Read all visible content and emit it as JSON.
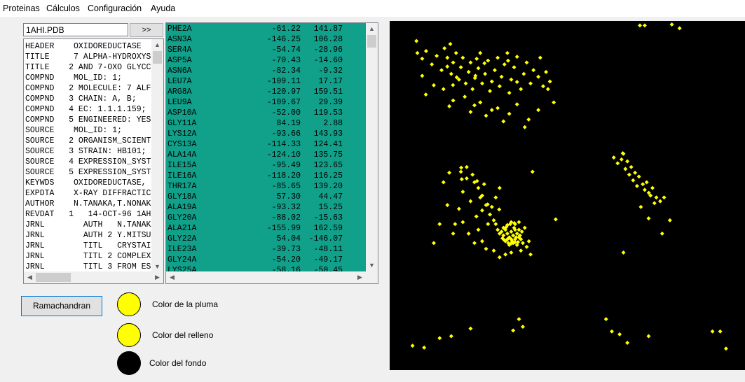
{
  "menu": [
    "Proteinas",
    "Cálculos",
    "Configuración",
    "Ayuda"
  ],
  "file": {
    "name": "1AHI.PDB",
    "go_label": ">>"
  },
  "header_lines": [
    "HEADER    OXIDOREDUCTASE",
    "TITLE     7 ALPHA-HYDROXYS",
    "TITLE    2 AND 7-OXO GLYCC",
    "COMPND    MOL_ID: 1;",
    "COMPND   2 MOLECULE: 7 ALF",
    "COMPND   3 CHAIN: A, B;",
    "COMPND   4 EC: 1.1.1.159;",
    "COMPND   5 ENGINEERED: YES",
    "SOURCE    MOL_ID: 1;",
    "SOURCE   2 ORGANISM_SCIENT",
    "SOURCE   3 STRAIN: HB101;",
    "SOURCE   4 EXPRESSION_SYST",
    "SOURCE   5 EXPRESSION_SYST",
    "KEYWDS    OXIDOREDUCTASE,",
    "EXPDTA    X-RAY DIFFRACTIC",
    "AUTHOR    N.TANAKA,T.NONAK",
    "REVDAT   1   14-OCT-96 1AH",
    "JRNL        AUTH   N.TANAK",
    "JRNL        AUTH 2 Y.MITSU",
    "JRNL        TITL   CRYSTAI",
    "JRNL        TITL 2 COMPLEX",
    "JRNL        TITL 3 FROM ES"
  ],
  "angles": [
    {
      "res": "PHE2A",
      "phi": "-61.22",
      "psi": "141.87"
    },
    {
      "res": "ASN3A",
      "phi": "-146.25",
      "psi": "106.28"
    },
    {
      "res": "SER4A",
      "phi": "-54.74",
      "psi": "-28.96"
    },
    {
      "res": "ASP5A",
      "phi": "-70.43",
      "psi": "-14.60"
    },
    {
      "res": "ASN6A",
      "phi": "-82.34",
      "psi": "-9.32"
    },
    {
      "res": "LEU7A",
      "phi": "-109.11",
      "psi": "17.17"
    },
    {
      "res": "ARG8A",
      "phi": "-120.97",
      "psi": "159.51"
    },
    {
      "res": "LEU9A",
      "phi": "-109.67",
      "psi": "29.39"
    },
    {
      "res": "ASP10A",
      "phi": "-52.00",
      "psi": "119.53"
    },
    {
      "res": "GLY11A",
      "phi": "84.19",
      "psi": "2.88"
    },
    {
      "res": "LYS12A",
      "phi": "-93.66",
      "psi": "143.93"
    },
    {
      "res": "CYS13A",
      "phi": "-114.33",
      "psi": "124.41"
    },
    {
      "res": "ALA14A",
      "phi": "-124.10",
      "psi": "135.75"
    },
    {
      "res": "ILE15A",
      "phi": "-95.49",
      "psi": "123.65"
    },
    {
      "res": "ILE16A",
      "phi": "-118.20",
      "psi": "116.25"
    },
    {
      "res": "THR17A",
      "phi": "-85.65",
      "psi": "139.20"
    },
    {
      "res": "GLY18A",
      "phi": "57.30",
      "psi": "44.47"
    },
    {
      "res": "ALA19A",
      "phi": "-93.32",
      "psi": "15.25"
    },
    {
      "res": "GLY20A",
      "phi": "-88.02",
      "psi": "-15.63"
    },
    {
      "res": "ALA21A",
      "phi": "-155.99",
      "psi": "162.59"
    },
    {
      "res": "GLY22A",
      "phi": "54.04",
      "psi": "-146.07"
    },
    {
      "res": "ILE23A",
      "phi": "-39.73",
      "psi": "-48.11"
    },
    {
      "res": "GLY24A",
      "phi": "-54.20",
      "psi": "-49.17"
    },
    {
      "res": "LYS25A",
      "phi": "-58.16",
      "psi": "-50.45"
    }
  ],
  "buttons": {
    "ramachandran": "Ramachandran"
  },
  "colors": {
    "pen": {
      "label": "Color de la pluma",
      "value": "#ffff00"
    },
    "fill": {
      "label": "Color del relleno",
      "value": "#ffff00"
    },
    "background": {
      "label": "Color del fondo",
      "value": "#000000"
    }
  },
  "chart_data": {
    "type": "scatter",
    "xlim": [
      -180,
      180
    ],
    "ylim": [
      -180,
      180
    ],
    "grid": false,
    "point_color": "#ffff00",
    "background": "#000000",
    "points": [
      [
        -61.22,
        141.87
      ],
      [
        -146.25,
        106.28
      ],
      [
        -54.74,
        -28.96
      ],
      [
        -70.43,
        -14.6
      ],
      [
        -82.34,
        -9.32
      ],
      [
        -109.11,
        17.17
      ],
      [
        -120.97,
        159.51
      ],
      [
        -109.67,
        29.39
      ],
      [
        -52.0,
        119.53
      ],
      [
        84.19,
        2.88
      ],
      [
        -93.66,
        143.93
      ],
      [
        -114.33,
        124.41
      ],
      [
        -124.1,
        135.75
      ],
      [
        -95.49,
        123.65
      ],
      [
        -118.2,
        116.25
      ],
      [
        -85.65,
        139.2
      ],
      [
        57.3,
        44.47
      ],
      [
        -93.32,
        15.25
      ],
      [
        -88.02,
        -15.63
      ],
      [
        -155.99,
        162.59
      ],
      [
        54.04,
        -146.07
      ],
      [
        -39.73,
        -48.11
      ],
      [
        -54.2,
        -49.17
      ],
      [
        -58.16,
        -50.45
      ],
      [
        -155,
        150
      ],
      [
        -150,
        144
      ],
      [
        -146,
        152
      ],
      [
        -140,
        138
      ],
      [
        -135,
        147
      ],
      [
        -130,
        132
      ],
      [
        -127,
        155
      ],
      [
        -124,
        145
      ],
      [
        -120,
        128
      ],
      [
        -118,
        140
      ],
      [
        -115,
        150
      ],
      [
        -112,
        122
      ],
      [
        -110,
        135
      ],
      [
        -108,
        145
      ],
      [
        -105,
        118
      ],
      [
        -102,
        130
      ],
      [
        -100,
        140
      ],
      [
        -98,
        112
      ],
      [
        -95,
        126
      ],
      [
        -92,
        134
      ],
      [
        -90,
        150
      ],
      [
        -88,
        118
      ],
      [
        -85,
        128
      ],
      [
        -82,
        142
      ],
      [
        -80,
        110
      ],
      [
        -78,
        120
      ],
      [
        -75,
        132
      ],
      [
        -72,
        145
      ],
      [
        -70,
        115
      ],
      [
        -68,
        125
      ],
      [
        -65,
        138
      ],
      [
        -62,
        150
      ],
      [
        -60,
        108
      ],
      [
        -58,
        122
      ],
      [
        -55,
        135
      ],
      [
        -52,
        146
      ],
      [
        -48,
        112
      ],
      [
        -45,
        128
      ],
      [
        -42,
        140
      ],
      [
        -38,
        118
      ],
      [
        -35,
        132
      ],
      [
        -30,
        125
      ],
      [
        -28,
        145
      ],
      [
        -25,
        115
      ],
      [
        -22,
        130
      ],
      [
        -18,
        120
      ],
      [
        -150,
        126
      ],
      [
        -138,
        116
      ],
      [
        -128,
        112
      ],
      [
        -118,
        100
      ],
      [
        -106,
        104
      ],
      [
        -96,
        95
      ],
      [
        -90,
        98
      ],
      [
        -84,
        84
      ],
      [
        -78,
        90
      ],
      [
        -72,
        92
      ],
      [
        -66,
        78
      ],
      [
        -60,
        86
      ],
      [
        -52,
        96
      ],
      [
        -44,
        72
      ],
      [
        -40,
        80
      ],
      [
        -30,
        90
      ],
      [
        -20,
        112
      ],
      [
        -14,
        98
      ],
      [
        -122,
        94
      ],
      [
        -100,
        88
      ],
      [
        -68,
        -38
      ],
      [
        -66,
        -42
      ],
      [
        -64,
        -36
      ],
      [
        -62,
        -40
      ],
      [
        -60,
        -44
      ],
      [
        -58,
        -38
      ],
      [
        -56,
        -42
      ],
      [
        -54,
        -46
      ],
      [
        -52,
        -40
      ],
      [
        -50,
        -36
      ],
      [
        -65,
        -47
      ],
      [
        -63,
        -33
      ],
      [
        -61,
        -50
      ],
      [
        -59,
        -30
      ],
      [
        -57,
        -48
      ],
      [
        -55,
        -34
      ],
      [
        -53,
        -44
      ],
      [
        -51,
        -49
      ],
      [
        -49,
        -42
      ],
      [
        -47,
        -38
      ],
      [
        -67,
        -45
      ],
      [
        -64,
        -48
      ],
      [
        -62,
        -31
      ],
      [
        -60,
        -52
      ],
      [
        -58,
        -28
      ],
      [
        -56,
        -50
      ],
      [
        -54,
        -30
      ],
      [
        -52,
        -52
      ],
      [
        -50,
        -28
      ],
      [
        -48,
        -46
      ],
      [
        -66,
        -34
      ],
      [
        -62,
        -46
      ],
      [
        -58,
        -46
      ],
      [
        -54,
        -36
      ],
      [
        -50,
        -44
      ],
      [
        -70,
        -40
      ],
      [
        -72,
        -36
      ],
      [
        -46,
        -50
      ],
      [
        -44,
        -34
      ],
      [
        -74,
        -30
      ],
      [
        -80,
        -20
      ],
      [
        -76,
        -26
      ],
      [
        -84,
        -10
      ],
      [
        -88,
        0
      ],
      [
        -92,
        8
      ],
      [
        -96,
        14
      ],
      [
        -100,
        -6
      ],
      [
        -104,
        18
      ],
      [
        -108,
        4
      ],
      [
        -112,
        -14
      ],
      [
        -116,
        -30
      ],
      [
        -110,
        25
      ],
      [
        -104,
        30
      ],
      [
        -98,
        22
      ],
      [
        -90,
        -2
      ],
      [
        -86,
        12
      ],
      [
        -82,
        -30
      ],
      [
        -78,
        -12
      ],
      [
        -74,
        -2
      ],
      [
        -70,
        8
      ],
      [
        -94,
        -22
      ],
      [
        -118,
        -40
      ],
      [
        -124,
        -10
      ],
      [
        -128,
        14
      ],
      [
        -132,
        -30
      ],
      [
        -138,
        -50
      ],
      [
        -102,
        -40
      ],
      [
        -96,
        -50
      ],
      [
        -108,
        -28
      ],
      [
        -122,
        24
      ],
      [
        -70,
        -65
      ],
      [
        -76,
        -58
      ],
      [
        -84,
        -56
      ],
      [
        -64,
        -62
      ],
      [
        -58,
        -60
      ],
      [
        -48,
        -58
      ],
      [
        -42,
        -54
      ],
      [
        -88,
        -48
      ],
      [
        -92,
        -36
      ],
      [
        -38,
        -62
      ],
      [
        48,
        40
      ],
      [
        52,
        34
      ],
      [
        56,
        38
      ],
      [
        58,
        44
      ],
      [
        60,
        28
      ],
      [
        62,
        36
      ],
      [
        64,
        22
      ],
      [
        66,
        30
      ],
      [
        68,
        16
      ],
      [
        70,
        24
      ],
      [
        72,
        10
      ],
      [
        74,
        20
      ],
      [
        78,
        12
      ],
      [
        80,
        6
      ],
      [
        82,
        14
      ],
      [
        86,
        0
      ],
      [
        88,
        8
      ],
      [
        90,
        -8
      ],
      [
        92,
        -2
      ],
      [
        96,
        -6
      ],
      [
        100,
        -2
      ],
      [
        76,
        -12
      ],
      [
        106,
        -26
      ],
      [
        84,
        -24
      ],
      [
        58,
        -60
      ],
      [
        98,
        -40
      ],
      [
        -160,
        -158
      ],
      [
        -148,
        -160
      ],
      [
        -132,
        -150
      ],
      [
        -120,
        -148
      ],
      [
        -100,
        -140
      ],
      [
        -50,
        -130
      ],
      [
        -46,
        -138
      ],
      [
        -56,
        -142
      ],
      [
        40,
        -130
      ],
      [
        46,
        -143
      ],
      [
        62,
        -155
      ],
      [
        84,
        -148
      ],
      [
        150,
        -143
      ],
      [
        158,
        -143
      ],
      [
        164,
        -161
      ],
      [
        -12,
        -25
      ],
      [
        -36,
        25
      ],
      [
        75,
        179
      ],
      [
        80,
        179
      ],
      [
        108,
        180
      ],
      [
        116,
        176
      ]
    ]
  }
}
